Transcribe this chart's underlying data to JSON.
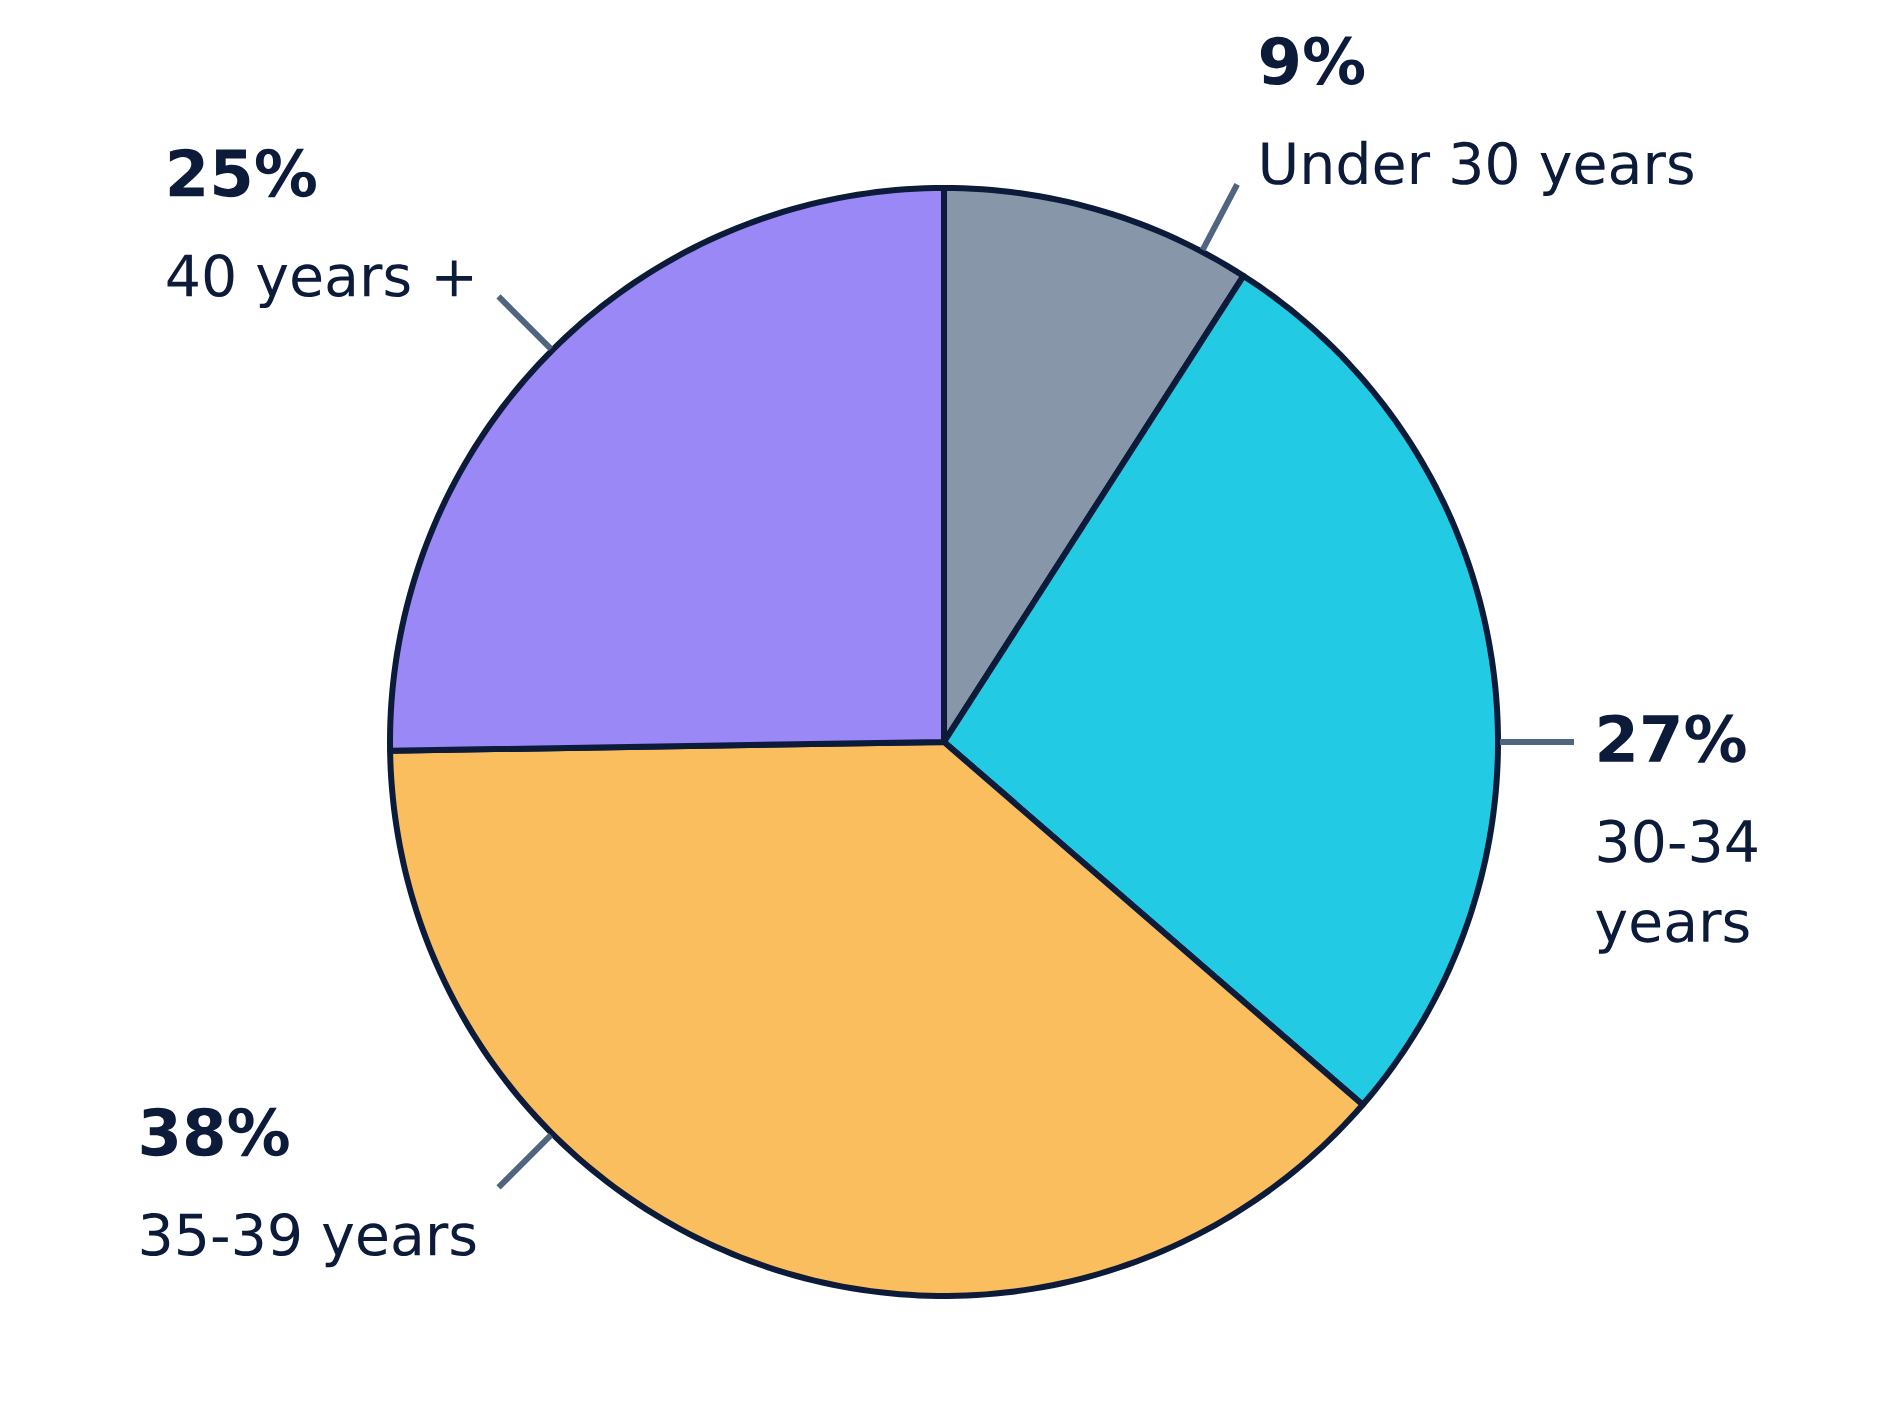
{
  "chart_data": {
    "type": "pie",
    "categories": [
      "Under 30 years",
      "30-34 years",
      "35-39 years",
      "40 years +"
    ],
    "values": [
      9,
      27,
      38,
      25
    ],
    "value_labels": [
      "9%",
      "27%",
      "38%",
      "25%"
    ],
    "colors": [
      "#8796a8",
      "#22cbe3",
      "#fbbe5e",
      "#9b88f7"
    ]
  }
}
